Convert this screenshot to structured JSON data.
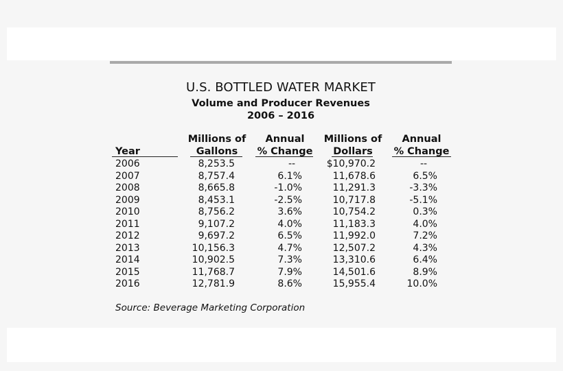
{
  "title": "U.S. BOTTLED WATER MARKET",
  "subtitle": "Volume and Producer Revenues",
  "period": "2006 – 2016",
  "headers": {
    "year": "Year",
    "gallons_line1": "Millions of",
    "gallons_line2": "Gallons",
    "gallons_change_line1": "Annual",
    "gallons_change_line2": "% Change",
    "dollars_line1": "Millions of",
    "dollars_line2": "Dollars",
    "dollars_change_line1": "Annual",
    "dollars_change_line2": "% Change"
  },
  "rows": [
    {
      "year": "2006",
      "gallons": "8,253.5",
      "gallons_change": "--",
      "dollars": "$10,970.2",
      "dollars_change": "--"
    },
    {
      "year": "2007",
      "gallons": "8,757.4",
      "gallons_change": "6.1%",
      "dollars": "11,678.6",
      "dollars_change": "6.5%"
    },
    {
      "year": "2008",
      "gallons": "8,665.8",
      "gallons_change": "-1.0%",
      "dollars": "11,291.3",
      "dollars_change": "-3.3%"
    },
    {
      "year": "2009",
      "gallons": "8,453.1",
      "gallons_change": "-2.5%",
      "dollars": "10,717.8",
      "dollars_change": "-5.1%"
    },
    {
      "year": "2010",
      "gallons": "8,756.2",
      "gallons_change": "3.6%",
      "dollars": "10,754.2",
      "dollars_change": "0.3%"
    },
    {
      "year": "2011",
      "gallons": "9,107.2",
      "gallons_change": "4.0%",
      "dollars": "11,183.3",
      "dollars_change": "4.0%"
    },
    {
      "year": "2012",
      "gallons": "9,697.2",
      "gallons_change": "6.5%",
      "dollars": "11,992.0",
      "dollars_change": "7.2%"
    },
    {
      "year": "2013",
      "gallons": "10,156.3",
      "gallons_change": "4.7%",
      "dollars": "12,507.2",
      "dollars_change": "4.3%"
    },
    {
      "year": "2014",
      "gallons": "10,902.5",
      "gallons_change": "7.3%",
      "dollars": "13,310.6",
      "dollars_change": "6.4%"
    },
    {
      "year": "2015",
      "gallons": "11,768.7",
      "gallons_change": "7.9%",
      "dollars": "14,501.6",
      "dollars_change": "8.9%"
    },
    {
      "year": "2016",
      "gallons": "12,781.9",
      "gallons_change": "8.6%",
      "dollars": "15,955.4",
      "dollars_change": "10.0%"
    }
  ],
  "source": "Source:  Beverage Marketing Corporation"
}
